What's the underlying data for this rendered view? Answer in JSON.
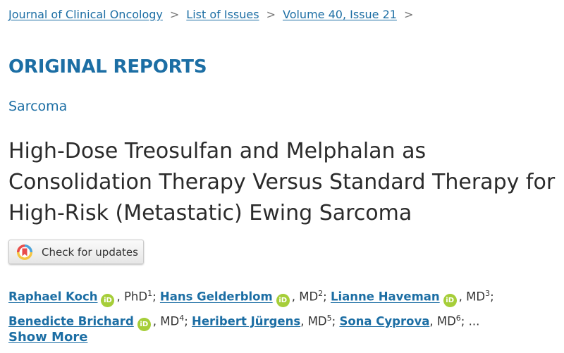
{
  "breadcrumb": {
    "items": [
      "Journal of Clinical Oncology",
      "List of Issues",
      "Volume 40, Issue 21"
    ],
    "separator": ">"
  },
  "section": "ORIGINAL REPORTS",
  "subject": "Sarcoma",
  "article": {
    "title_lines": [
      "High-Dose Treosulfan and Melphalan as",
      "Consolidation Therapy Versus Standard Therapy for",
      "High-Risk (Metastatic) Ewing Sarcoma"
    ]
  },
  "update_button": {
    "label": "Check for updates",
    "icon": "crossmark-icon"
  },
  "orcid_icon_text": "iD",
  "authors": [
    {
      "name": "Raphael Koch",
      "orcid": true,
      "degree": "PhD",
      "sup": "1"
    },
    {
      "name": "Hans Gelderblom",
      "orcid": true,
      "degree": "MD",
      "sup": "2"
    },
    {
      "name": "Lianne Haveman",
      "orcid": true,
      "degree": "MD",
      "sup": "3"
    },
    {
      "name": "Benedicte Brichard",
      "orcid": true,
      "degree": "MD",
      "sup": "4"
    },
    {
      "name": "Heribert Jürgens",
      "orcid": false,
      "degree": "MD",
      "sup": "5"
    },
    {
      "name": "Sona Cyprova",
      "orcid": false,
      "degree": "MD",
      "sup": "6"
    }
  ],
  "authors_ellipsis": "...",
  "show_more": "Show More",
  "colors": {
    "link": "#1c6ea4",
    "orcid": "#a6ce39",
    "text": "#2b2b2b"
  }
}
